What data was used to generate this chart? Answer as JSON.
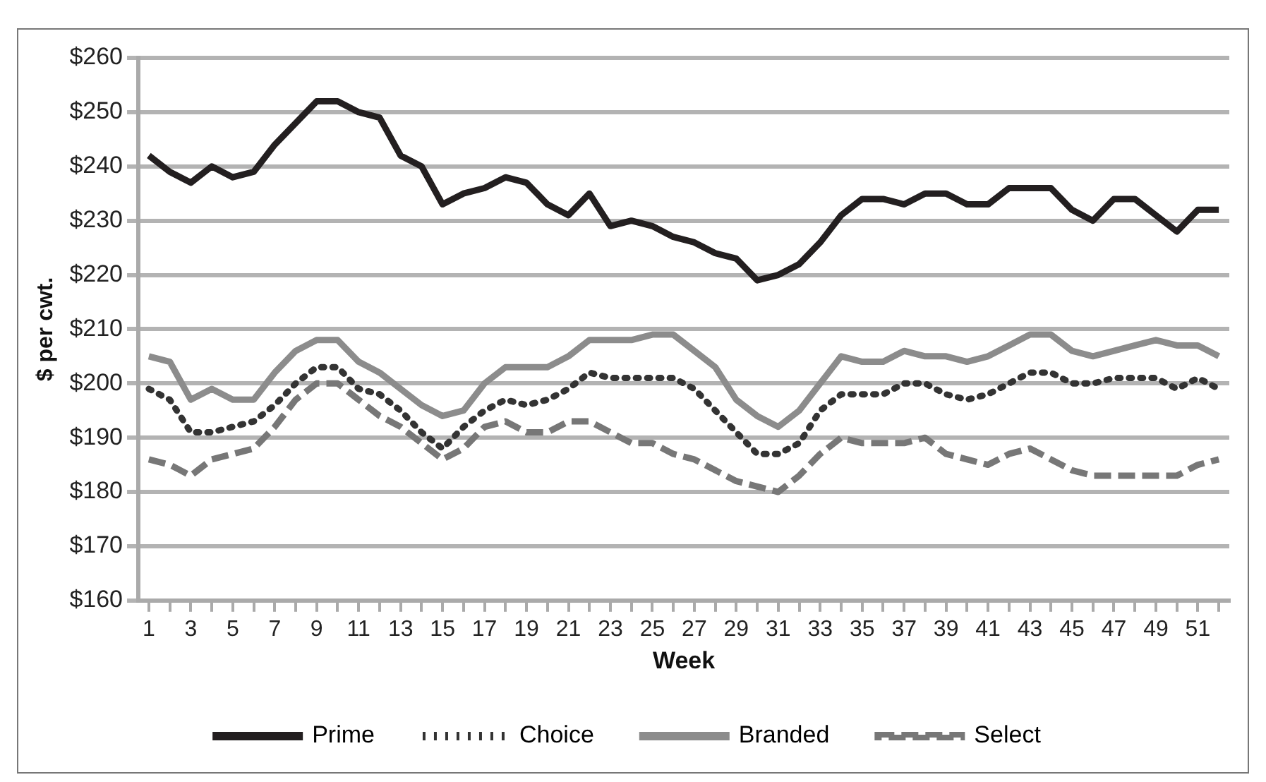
{
  "chart_data": {
    "type": "line",
    "xlabel": "Week",
    "ylabel": "$ per cwt.",
    "x": [
      1,
      2,
      3,
      4,
      5,
      6,
      7,
      8,
      9,
      10,
      11,
      12,
      13,
      14,
      15,
      16,
      17,
      18,
      19,
      20,
      21,
      22,
      23,
      24,
      25,
      26,
      27,
      28,
      29,
      30,
      31,
      32,
      33,
      34,
      35,
      36,
      37,
      38,
      39,
      40,
      41,
      42,
      43,
      44,
      45,
      46,
      47,
      48,
      49,
      50,
      51,
      52
    ],
    "xlim": [
      0.5,
      52.5
    ],
    "xticks": [
      1,
      {
        "value": 2,
        "label": null
      },
      3,
      {
        "value": 4,
        "label": null
      },
      5,
      {
        "value": 6,
        "label": null
      },
      7,
      {
        "value": 8,
        "label": null
      },
      9,
      {
        "value": 10,
        "label": null
      },
      11,
      {
        "value": 12,
        "label": null
      },
      13,
      {
        "value": 14,
        "label": null
      },
      15,
      {
        "value": 16,
        "label": null
      },
      17,
      {
        "value": 18,
        "label": null
      },
      19,
      {
        "value": 20,
        "label": null
      },
      21,
      {
        "value": 22,
        "label": null
      },
      23,
      {
        "value": 24,
        "label": null
      },
      25,
      {
        "value": 26,
        "label": null
      },
      27,
      {
        "value": 28,
        "label": null
      },
      29,
      {
        "value": 30,
        "label": null
      },
      31,
      {
        "value": 32,
        "label": null
      },
      33,
      {
        "value": 34,
        "label": null
      },
      35,
      {
        "value": 36,
        "label": null
      },
      37,
      {
        "value": 38,
        "label": null
      },
      39,
      {
        "value": 40,
        "label": null
      },
      41,
      {
        "value": 42,
        "label": null
      },
      43,
      {
        "value": 44,
        "label": null
      },
      45,
      {
        "value": 46,
        "label": null
      },
      47,
      {
        "value": 48,
        "label": null
      },
      49,
      {
        "value": 50,
        "label": null
      },
      51,
      {
        "value": 52,
        "label": null
      }
    ],
    "ylim": [
      160,
      260
    ],
    "yticks": [
      {
        "value": 160,
        "label": "$160"
      },
      {
        "value": 170,
        "label": "$170"
      },
      {
        "value": 180,
        "label": "$180"
      },
      {
        "value": 190,
        "label": "$190"
      },
      {
        "value": 200,
        "label": "$200"
      },
      {
        "value": 210,
        "label": "$210"
      },
      {
        "value": 220,
        "label": "$220"
      },
      {
        "value": 230,
        "label": "$230"
      },
      {
        "value": 240,
        "label": "$240"
      },
      {
        "value": 250,
        "label": "$250"
      },
      {
        "value": 260,
        "label": "$260"
      }
    ],
    "grid": "y",
    "legend": "bottom",
    "marker": "none",
    "series": [
      {
        "name": "Prime",
        "color": "#231f20",
        "line_style": "solid",
        "values": [
          242,
          239,
          237,
          240,
          238,
          239,
          244,
          248,
          252,
          252,
          250,
          249,
          242,
          240,
          233,
          235,
          236,
          238,
          237,
          233,
          231,
          235,
          229,
          230,
          229,
          227,
          226,
          224,
          223,
          219,
          220,
          222,
          226,
          231,
          234,
          234,
          233,
          235,
          235,
          233,
          233,
          236,
          236,
          236,
          232,
          230,
          234,
          234,
          231,
          228,
          232,
          232
        ]
      },
      {
        "name": "Choice",
        "color": "#333333",
        "line_style": "dotted",
        "values": [
          199,
          197,
          191,
          191,
          192,
          193,
          196,
          200,
          203,
          203,
          199,
          198,
          195,
          191,
          188,
          192,
          195,
          197,
          196,
          197,
          199,
          202,
          201,
          201,
          201,
          201,
          199,
          195,
          191,
          187,
          187,
          189,
          195,
          198,
          198,
          198,
          200,
          200,
          198,
          197,
          198,
          200,
          202,
          202,
          200,
          200,
          201,
          201,
          201,
          199,
          201,
          199
        ]
      },
      {
        "name": "Branded",
        "color": "#8c8c8c",
        "line_style": "solid",
        "values": [
          205,
          204,
          197,
          199,
          197,
          197,
          202,
          206,
          208,
          208,
          204,
          202,
          199,
          196,
          194,
          195,
          200,
          203,
          203,
          203,
          205,
          208,
          208,
          208,
          209,
          209,
          206,
          203,
          197,
          194,
          192,
          195,
          200,
          205,
          204,
          204,
          206,
          205,
          205,
          204,
          205,
          207,
          209,
          209,
          206,
          205,
          206,
          207,
          208,
          207,
          207,
          205
        ]
      },
      {
        "name": "Select",
        "color": "#777777",
        "line_style": "dashed",
        "values": [
          186,
          185,
          183,
          186,
          187,
          188,
          192,
          197,
          200,
          200,
          197,
          194,
          192,
          189,
          186,
          188,
          192,
          193,
          191,
          191,
          193,
          193,
          191,
          189,
          189,
          187,
          186,
          184,
          182,
          181,
          180,
          183,
          187,
          190,
          189,
          189,
          189,
          190,
          187,
          186,
          185,
          187,
          188,
          186,
          184,
          183,
          183,
          183,
          183,
          183,
          185,
          186
        ]
      }
    ]
  }
}
